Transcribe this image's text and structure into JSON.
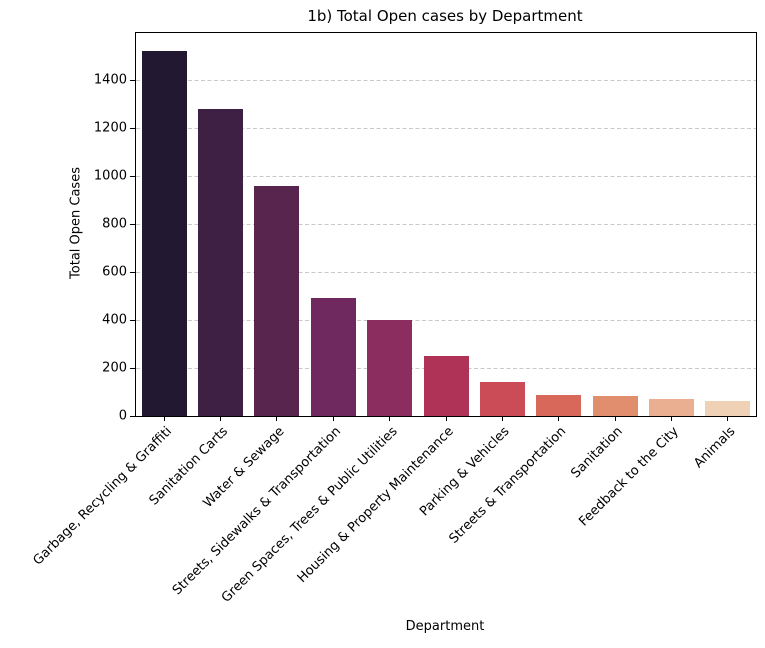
{
  "chart_data": {
    "type": "bar",
    "title": "1b) Total Open cases by Department",
    "xlabel": "Department",
    "ylabel": "Total Open Cases",
    "categories": [
      "Garbage, Recycling & Graffiti",
      "Sanitation Carts",
      "Water & Sewage",
      "Streets, Sidewalks & Transportation",
      "Green Spaces, Trees & Public Utilities",
      "Housing & Property Maintenance",
      "Parking & Vehicles",
      "Streets & Transportation",
      "Sanitation",
      "Feedback to the City",
      "Animals"
    ],
    "values": [
      1520,
      1280,
      960,
      490,
      400,
      250,
      143,
      88,
      84,
      70,
      62
    ],
    "bar_colors": [
      "#221832",
      "#3d2044",
      "#57254e",
      "#70295f",
      "#8c2d60",
      "#ae3357",
      "#cb4b57",
      "#d8695a",
      "#e18e6e",
      "#eaaf90",
      "#efd2b6"
    ],
    "ylim": [
      0,
      1596
    ],
    "yticks": [
      0,
      200,
      400,
      600,
      800,
      1000,
      1200,
      1400
    ],
    "grid": {
      "axis": "y",
      "style": "dashed",
      "color": "#c9c9c9"
    },
    "legend": "none",
    "background": "#ffffff",
    "spine_color": "#000000"
  }
}
